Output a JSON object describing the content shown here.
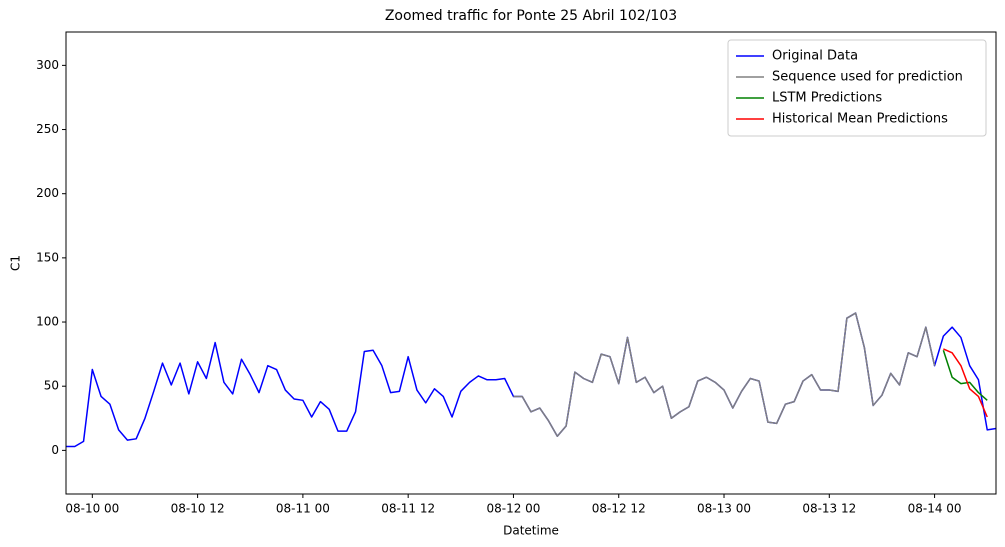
{
  "chart_data": {
    "type": "line",
    "title": "Zoomed traffic for Ponte 25 Abril 102/103",
    "x_label": "Datetime",
    "y_label": "C1",
    "x": [
      "08-09 21",
      "08-09 22",
      "08-09 23",
      "08-10 00",
      "08-10 01",
      "08-10 02",
      "08-10 03",
      "08-10 04",
      "08-10 05",
      "08-10 06",
      "08-10 07",
      "08-10 08",
      "08-10 09",
      "08-10 10",
      "08-10 11",
      "08-10 12",
      "08-10 13",
      "08-10 14",
      "08-10 15",
      "08-10 16",
      "08-10 17",
      "08-10 18",
      "08-10 19",
      "08-10 20",
      "08-10 21",
      "08-10 22",
      "08-10 23",
      "08-11 00",
      "08-11 01",
      "08-11 02",
      "08-11 03",
      "08-11 04",
      "08-11 05",
      "08-11 06",
      "08-11 07",
      "08-11 08",
      "08-11 09",
      "08-11 10",
      "08-11 11",
      "08-11 12",
      "08-11 13",
      "08-11 14",
      "08-11 15",
      "08-11 16",
      "08-11 17",
      "08-11 18",
      "08-11 19",
      "08-11 20",
      "08-11 21",
      "08-11 22",
      "08-11 23",
      "08-12 00",
      "08-12 01",
      "08-12 02",
      "08-12 03",
      "08-12 04",
      "08-12 05",
      "08-12 06",
      "08-12 07",
      "08-12 08",
      "08-12 09",
      "08-12 10",
      "08-12 11",
      "08-12 12",
      "08-12 13",
      "08-12 14",
      "08-12 15",
      "08-12 16",
      "08-12 17",
      "08-12 18",
      "08-12 19",
      "08-12 20",
      "08-12 21",
      "08-12 22",
      "08-12 23",
      "08-13 00",
      "08-13 01",
      "08-13 02",
      "08-13 03",
      "08-13 04",
      "08-13 05",
      "08-13 06",
      "08-13 07",
      "08-13 08",
      "08-13 09",
      "08-13 10",
      "08-13 11",
      "08-13 12",
      "08-13 13",
      "08-13 14",
      "08-13 15",
      "08-13 16",
      "08-13 17",
      "08-13 18",
      "08-13 19",
      "08-13 20",
      "08-13 21",
      "08-13 22",
      "08-13 23",
      "08-14 00",
      "08-14 01",
      "08-14 02",
      "08-14 03",
      "08-14 04",
      "08-14 05",
      "08-14 06",
      "08-14 07"
    ],
    "series": [
      {
        "name": "Original Data",
        "color": "#0000ff",
        "values": [
          3,
          3,
          7,
          63,
          42,
          36,
          16,
          8,
          9,
          25,
          46,
          68,
          51,
          68,
          44,
          69,
          56,
          84,
          53,
          44,
          71,
          59,
          45,
          66,
          63,
          47,
          40,
          39,
          26,
          38,
          32,
          15,
          15,
          30,
          77,
          78,
          66,
          45,
          46,
          73,
          47,
          37,
          48,
          42,
          26,
          46,
          53,
          58,
          55,
          55,
          56,
          42,
          42,
          30,
          33,
          23,
          11,
          19,
          61,
          56,
          53,
          75,
          73,
          52,
          88,
          53,
          57,
          45,
          50,
          25,
          30,
          34,
          54,
          57,
          53,
          47,
          33,
          46,
          56,
          54,
          22,
          21,
          36,
          38,
          54,
          59,
          47,
          47,
          46,
          103,
          107,
          80,
          35,
          43,
          60,
          51,
          76,
          73,
          96,
          66,
          89,
          96,
          88,
          66,
          55,
          16,
          17
        ]
      },
      {
        "name": "Sequence used for prediction",
        "color": "#808080",
        "values": [
          null,
          null,
          null,
          null,
          null,
          null,
          null,
          null,
          null,
          null,
          null,
          null,
          null,
          null,
          null,
          null,
          null,
          null,
          null,
          null,
          null,
          null,
          null,
          null,
          null,
          null,
          null,
          null,
          null,
          null,
          null,
          null,
          null,
          null,
          null,
          null,
          null,
          null,
          null,
          null,
          null,
          null,
          null,
          null,
          null,
          null,
          null,
          null,
          null,
          null,
          null,
          42,
          42,
          30,
          33,
          23,
          11,
          19,
          61,
          56,
          53,
          75,
          73,
          52,
          88,
          53,
          57,
          45,
          50,
          25,
          30,
          34,
          54,
          57,
          53,
          47,
          33,
          46,
          56,
          54,
          22,
          21,
          36,
          38,
          54,
          59,
          47,
          47,
          46,
          103,
          107,
          80,
          35,
          43,
          60,
          51,
          76,
          73,
          96,
          66,
          null,
          null,
          null,
          null,
          null,
          null,
          null
        ]
      },
      {
        "name": "LSTM Predictions",
        "color": "#008000",
        "values": [
          null,
          null,
          null,
          null,
          null,
          null,
          null,
          null,
          null,
          null,
          null,
          null,
          null,
          null,
          null,
          null,
          null,
          null,
          null,
          null,
          null,
          null,
          null,
          null,
          null,
          null,
          null,
          null,
          null,
          null,
          null,
          null,
          null,
          null,
          null,
          null,
          null,
          null,
          null,
          null,
          null,
          null,
          null,
          null,
          null,
          null,
          null,
          null,
          null,
          null,
          null,
          null,
          null,
          null,
          null,
          null,
          null,
          null,
          null,
          null,
          null,
          null,
          null,
          null,
          null,
          null,
          null,
          null,
          null,
          null,
          null,
          null,
          null,
          null,
          null,
          null,
          null,
          null,
          null,
          null,
          null,
          null,
          null,
          null,
          null,
          null,
          null,
          null,
          null,
          null,
          null,
          null,
          null,
          null,
          null,
          null,
          null,
          null,
          null,
          null,
          78,
          57,
          52,
          53,
          45,
          39,
          null
        ]
      },
      {
        "name": "Historical Mean Predictions",
        "color": "#ff0000",
        "values": [
          null,
          null,
          null,
          null,
          null,
          null,
          null,
          null,
          null,
          null,
          null,
          null,
          null,
          null,
          null,
          null,
          null,
          null,
          null,
          null,
          null,
          null,
          null,
          null,
          null,
          null,
          null,
          null,
          null,
          null,
          null,
          null,
          null,
          null,
          null,
          null,
          null,
          null,
          null,
          null,
          null,
          null,
          null,
          null,
          null,
          null,
          null,
          null,
          null,
          null,
          null,
          null,
          null,
          null,
          null,
          null,
          null,
          null,
          null,
          null,
          null,
          null,
          null,
          null,
          null,
          null,
          null,
          null,
          null,
          null,
          null,
          null,
          null,
          null,
          null,
          null,
          null,
          null,
          null,
          null,
          null,
          null,
          null,
          null,
          null,
          null,
          null,
          null,
          null,
          null,
          null,
          null,
          null,
          null,
          null,
          null,
          null,
          null,
          null,
          null,
          79,
          76,
          66,
          48,
          42,
          26,
          null
        ]
      }
    ],
    "xlim": [
      "08-09 21",
      "08-14 07"
    ],
    "xticks": [
      "08-10 00",
      "08-10 12",
      "08-11 00",
      "08-11 12",
      "08-12 00",
      "08-12 12",
      "08-13 00",
      "08-13 12",
      "08-14 00"
    ],
    "ylim": [
      -34,
      326
    ],
    "yticks": [
      0,
      50,
      100,
      150,
      200,
      250,
      300
    ],
    "grid": false,
    "legend": "upper right"
  }
}
